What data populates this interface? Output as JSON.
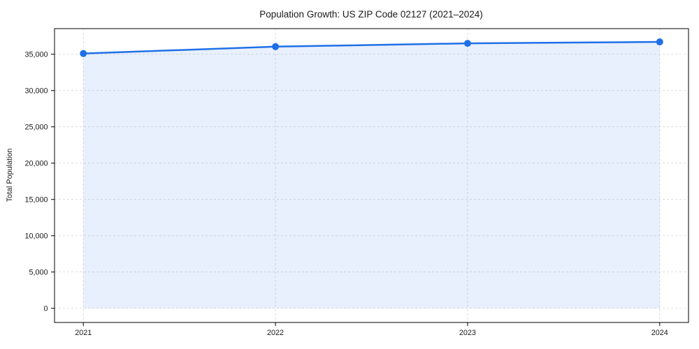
{
  "window": {
    "background": "#ffffff"
  },
  "chart_data": {
    "type": "line",
    "title": "Population Growth: US ZIP Code 02127 (2021–2024)",
    "xlabel": "",
    "ylabel": "Total Population",
    "x": [
      2021,
      2022,
      2023,
      2024
    ],
    "x_tick_labels": [
      "2021",
      "2022",
      "2023",
      "2024"
    ],
    "series": [
      {
        "name": "Total Population",
        "values": [
          35100,
          36050,
          36500,
          36700
        ]
      }
    ],
    "y_ticks": [
      0,
      5000,
      10000,
      15000,
      20000,
      25000,
      30000,
      35000
    ],
    "y_tick_labels": [
      "0",
      "5,000",
      "10,000",
      "15,000",
      "20,000",
      "25,000",
      "30,000",
      "35,000"
    ],
    "xlim": [
      2020.85,
      2024.15
    ],
    "ylim": [
      -1950,
      38530
    ],
    "grid": true,
    "grid_style": "dashed",
    "legend": false,
    "marker": "circle",
    "area_fill": true,
    "area_baseline": 0
  },
  "colors": {
    "line": "#1f70e8",
    "area_fill": "rgba(31,112,232,0.1)",
    "grid": "#d9d9d9",
    "axis": "#000000",
    "text": "#1a1a1a",
    "background": "#ffffff"
  }
}
